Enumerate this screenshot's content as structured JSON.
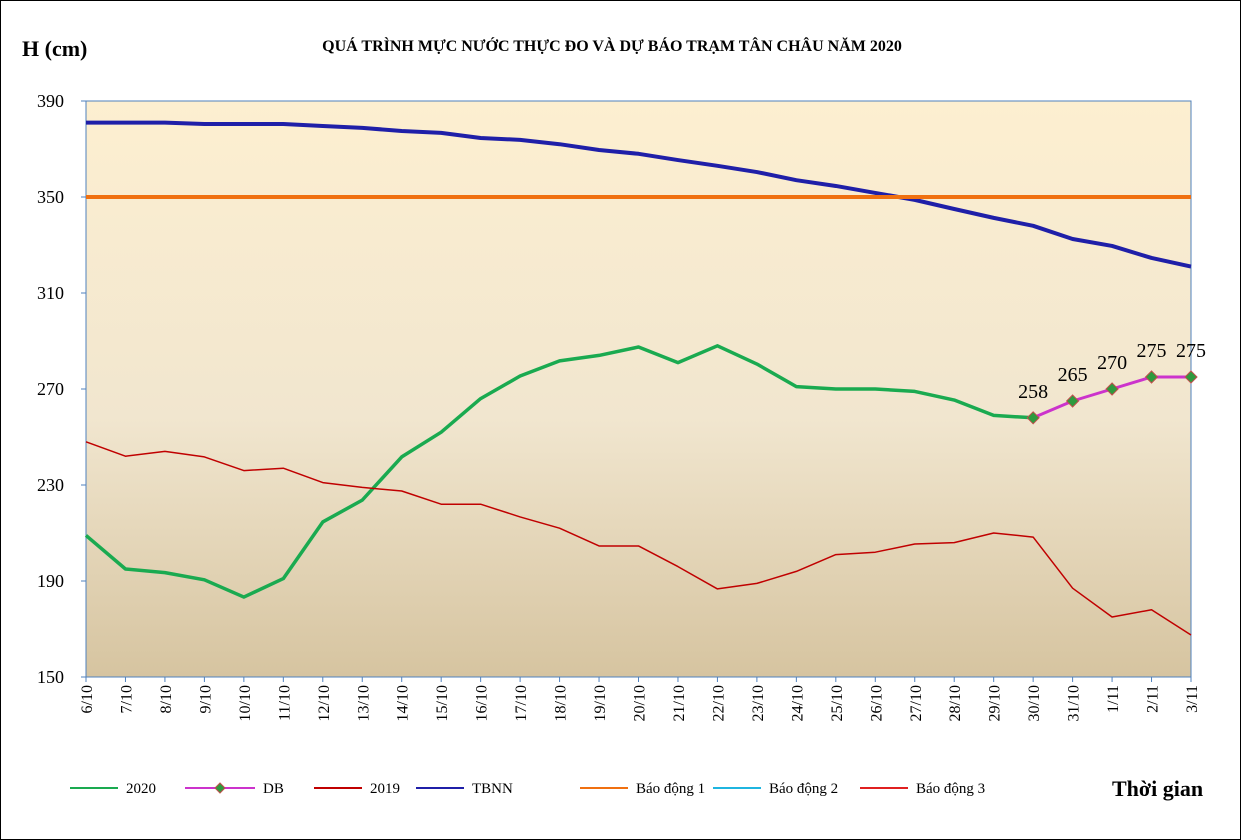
{
  "chart_data": {
    "type": "line",
    "title": "QUÁ TRÌNH MỰC NƯỚC THỰC ĐO VÀ DỰ BÁO TRẠM TÂN CHÂU NĂM 2020",
    "y_label": "H (cm)",
    "x_label": "Thời gian",
    "categories": [
      "6/10",
      "7/10",
      "8/10",
      "9/10",
      "10/10",
      "11/10",
      "12/10",
      "13/10",
      "14/10",
      "15/10",
      "16/10",
      "17/10",
      "18/10",
      "19/10",
      "20/10",
      "21/10",
      "22/10",
      "23/10",
      "24/10",
      "25/10",
      "26/10",
      "27/10",
      "28/10",
      "29/10",
      "30/10",
      "31/10",
      "1/11",
      "2/11",
      "3/11"
    ],
    "ylim": [
      150,
      390
    ],
    "yticks": [
      150,
      190,
      230,
      270,
      310,
      350,
      390
    ],
    "series": [
      {
        "name": "2020",
        "color": "#1aaa50",
        "width": 3.5,
        "values": [
          209,
          195,
          193.5,
          190.5,
          183.3,
          191,
          214.6,
          223.7,
          241.7,
          252,
          266,
          275.4,
          281.7,
          284,
          287.5,
          281,
          288,
          280.4,
          271,
          270,
          270,
          269,
          265.4,
          259,
          258,
          null,
          null,
          null,
          null
        ]
      },
      {
        "name": "DB",
        "color": "#cc33cc",
        "width": 3,
        "marker": "diamond",
        "marker_color": "#2e9a3e",
        "values": [
          null,
          null,
          null,
          null,
          null,
          null,
          null,
          null,
          null,
          null,
          null,
          null,
          null,
          null,
          null,
          null,
          null,
          null,
          null,
          null,
          null,
          null,
          null,
          null,
          258,
          265,
          270,
          275,
          275
        ],
        "value_labels": [
          null,
          null,
          null,
          null,
          null,
          null,
          null,
          null,
          null,
          null,
          null,
          null,
          null,
          null,
          null,
          null,
          null,
          null,
          null,
          null,
          null,
          null,
          null,
          null,
          "258",
          "265",
          "270",
          "275",
          "275"
        ]
      },
      {
        "name": "2019",
        "color": "#c00000",
        "width": 1.5,
        "values": [
          248,
          242,
          244,
          241.7,
          236,
          237,
          231,
          229,
          227.5,
          222,
          222,
          216.7,
          212,
          204.6,
          204.6,
          196,
          186.7,
          189,
          194,
          201,
          202,
          205.4,
          206,
          210,
          208.3,
          187,
          175,
          178,
          167.5
        ]
      },
      {
        "name": "TBNN",
        "color": "#1f1fa8",
        "width": 4,
        "values": [
          381,
          381,
          381,
          380.4,
          380.4,
          380.4,
          379.6,
          378.8,
          377.5,
          376.7,
          374.6,
          373.8,
          372,
          369.6,
          368,
          365.4,
          363,
          360.4,
          357,
          354.6,
          351.7,
          348.8,
          345,
          341.3,
          338,
          332.5,
          329.6,
          324.6,
          321
        ]
      },
      {
        "name": "Báo động 1",
        "color": "#f07010",
        "width": 4,
        "values": [
          350,
          350,
          350,
          350,
          350,
          350,
          350,
          350,
          350,
          350,
          350,
          350,
          350,
          350,
          350,
          350,
          350,
          350,
          350,
          350,
          350,
          350,
          350,
          350,
          350,
          350,
          350,
          350,
          350
        ]
      },
      {
        "name": "Báo động 2",
        "color": "#1fb5e0",
        "width": 1.5
      },
      {
        "name": "Báo động 3",
        "color": "#e02020",
        "width": 1.5
      }
    ]
  }
}
